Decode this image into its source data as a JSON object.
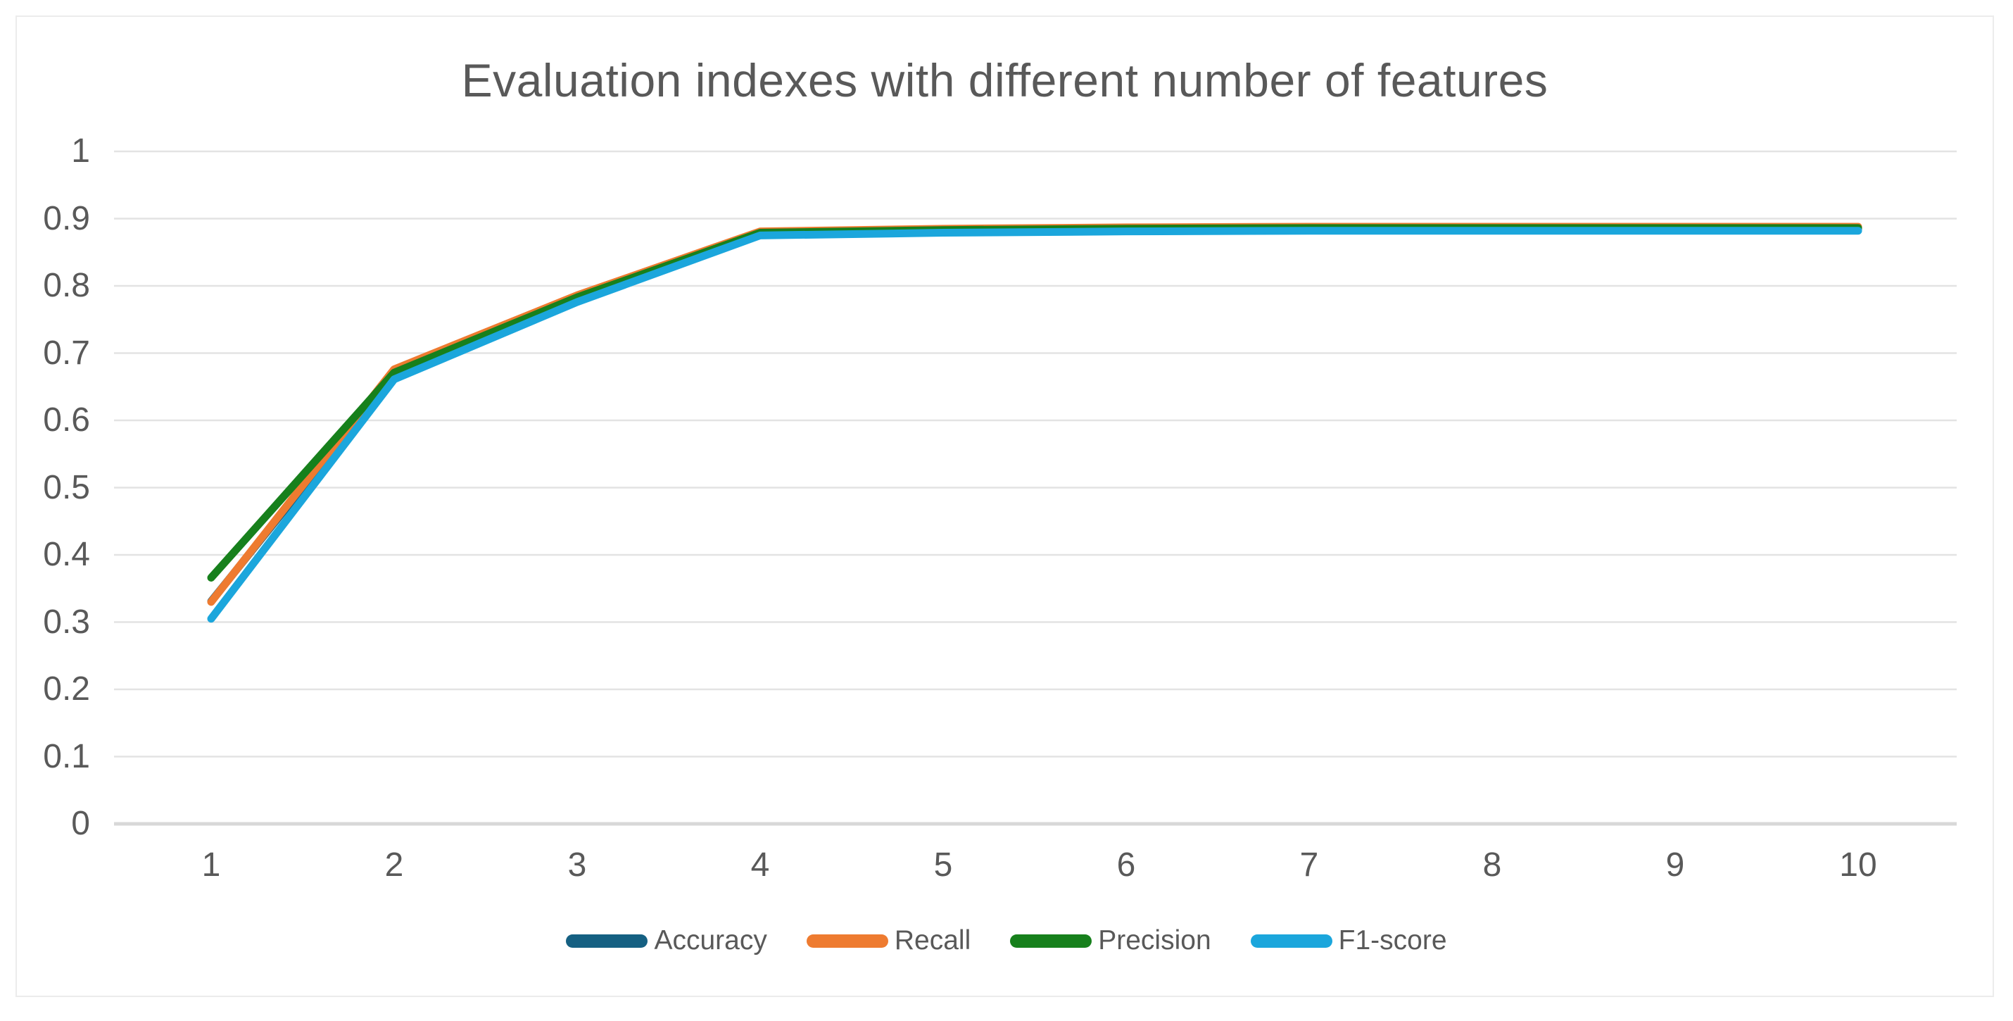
{
  "page": {
    "background": "#ffffff",
    "frame_border_color": "#ececec"
  },
  "chart_data": {
    "type": "line",
    "title": "Evaluation indexes with different number of features",
    "title_color": "#595959",
    "categories": [
      1,
      2,
      3,
      4,
      5,
      6,
      7,
      8,
      9,
      10
    ],
    "x_tick_labels": [
      "1",
      "2",
      "3",
      "4",
      "5",
      "6",
      "7",
      "8",
      "9",
      "10"
    ],
    "y_tick_labels": [
      "1",
      "0.9",
      "0.8",
      "0.7",
      "0.6",
      "0.5",
      "0.4",
      "0.3",
      "0.2",
      "0.1",
      "0"
    ],
    "y_tick_values": [
      1,
      0.9,
      0.8,
      0.7,
      0.6,
      0.5,
      0.4,
      0.3,
      0.2,
      0.1,
      0
    ],
    "ylim": [
      0,
      1
    ],
    "grid": "horizontal",
    "gridline_color": "#e3e3e3",
    "axis_line_color": "#d8d8d8",
    "text_color": "#595959",
    "legend_position": "bottom",
    "line_width": 11,
    "series": [
      {
        "name": "Accuracy",
        "color": "#156082",
        "values": [
          0.331,
          0.669,
          0.781,
          0.878,
          0.882,
          0.884,
          0.885,
          0.885,
          0.885,
          0.885
        ]
      },
      {
        "name": "Recall",
        "color": "#EE7B30",
        "values": [
          0.33,
          0.676,
          0.786,
          0.881,
          0.885,
          0.887,
          0.888,
          0.888,
          0.888,
          0.888
        ]
      },
      {
        "name": "Precision",
        "color": "#17801C",
        "values": [
          0.366,
          0.671,
          0.783,
          0.879,
          0.883,
          0.885,
          0.886,
          0.886,
          0.886,
          0.886
        ]
      },
      {
        "name": "F1-score",
        "color": "#1BA6DC",
        "values": [
          0.305,
          0.661,
          0.776,
          0.875,
          0.879,
          0.881,
          0.882,
          0.882,
          0.882,
          0.882
        ]
      }
    ]
  }
}
